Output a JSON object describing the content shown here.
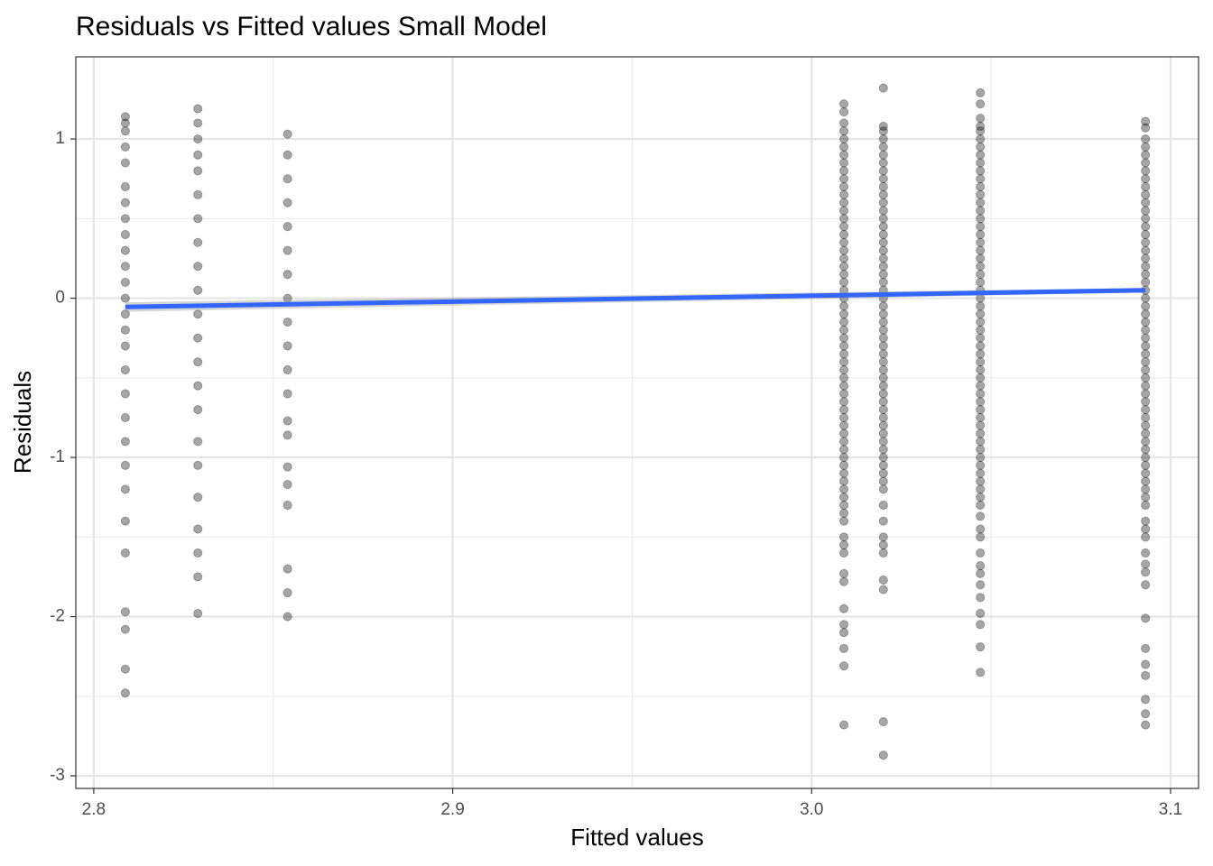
{
  "chart_data": {
    "type": "scatter",
    "title": "Residuals vs Fitted values Small Model",
    "x_label": "Fitted values",
    "y_label": "Residuals",
    "xlim": [
      2.795,
      3.1078
    ],
    "ylim": [
      -3.079,
      1.516
    ],
    "xticks": [
      2.8,
      2.9,
      {
        "value": 3,
        "label": "3.0"
      },
      3.1
    ],
    "yticks": [
      -3,
      -2,
      -1,
      0,
      1
    ],
    "minor_xticks": [
      2.85,
      2.95,
      3.05
    ],
    "minor_yticks": [
      -2.5,
      -1.5,
      -0.5,
      0.5
    ],
    "grid": true,
    "color": "#000000",
    "opacity": 0.35,
    "series": [
      {
        "x": 2.8088,
        "values": [
          1.14,
          1.1,
          1.05,
          0.95,
          0.85,
          0.7,
          0.6,
          0.5,
          0.4,
          0.3,
          0.2,
          0.1,
          0,
          -0.1,
          -0.2,
          -0.3,
          -0.45,
          -0.6,
          -0.75,
          -0.9,
          -1.05,
          -1.2,
          -1.4,
          -1.6,
          -1.97,
          -2.08,
          -2.33,
          -2.48
        ]
      },
      {
        "x": 2.829,
        "values": [
          1.19,
          1.1,
          1,
          0.9,
          0.8,
          0.65,
          0.5,
          0.35,
          0.2,
          0.05,
          -0.1,
          -0.25,
          -0.4,
          -0.55,
          -0.7,
          -0.9,
          -1.05,
          -1.25,
          -1.45,
          -1.6,
          -1.75,
          -1.98
        ]
      },
      {
        "x": 2.854,
        "values": [
          1.03,
          0.9,
          0.75,
          0.6,
          0.45,
          0.3,
          0.15,
          0,
          -0.15,
          -0.3,
          -0.45,
          -0.6,
          -0.77,
          -0.86,
          -1.06,
          -1.17,
          -1.3,
          -1.7,
          -1.85,
          -2
        ]
      },
      {
        "x": 3.009,
        "values": [
          1.22,
          1.17,
          1.1,
          1.05,
          1,
          0.95,
          0.9,
          0.85,
          0.8,
          0.75,
          0.7,
          0.65,
          0.6,
          0.55,
          0.5,
          0.45,
          0.4,
          0.35,
          0.3,
          0.25,
          0.2,
          0.15,
          0.1,
          0.05,
          0,
          -0.05,
          -0.1,
          -0.15,
          -0.2,
          -0.25,
          -0.3,
          -0.35,
          -0.4,
          -0.45,
          -0.5,
          -0.55,
          -0.6,
          -0.65,
          -0.7,
          -0.75,
          -0.8,
          -0.85,
          -0.9,
          -0.95,
          -1,
          -1.05,
          -1.1,
          -1.15,
          -1.2,
          -1.25,
          -1.3,
          -1.35,
          -1.4,
          -1.5,
          -1.55,
          -1.6,
          -1.73,
          -1.78,
          -1.95,
          -2.05,
          -2.1,
          -2.2,
          -2.31,
          -2.68
        ]
      },
      {
        "x": 3.02,
        "values": [
          1.32,
          1.08,
          1.05,
          1,
          0.95,
          0.9,
          0.85,
          0.8,
          0.75,
          0.7,
          0.65,
          0.6,
          0.55,
          0.5,
          0.45,
          0.4,
          0.35,
          0.3,
          0.25,
          0.2,
          0.15,
          0.1,
          0.05,
          0,
          -0.05,
          -0.1,
          -0.15,
          -0.2,
          -0.25,
          -0.3,
          -0.35,
          -0.4,
          -0.45,
          -0.5,
          -0.55,
          -0.6,
          -0.65,
          -0.7,
          -0.75,
          -0.8,
          -0.85,
          -0.9,
          -0.95,
          -1,
          -1.05,
          -1.1,
          -1.15,
          -1.2,
          -1.3,
          -1.4,
          -1.5,
          -1.55,
          -1.6,
          -1.77,
          -1.83,
          -2.66,
          -2.87
        ]
      },
      {
        "x": 3.047,
        "values": [
          1.29,
          1.22,
          1.13,
          1.08,
          1.05,
          1,
          0.95,
          0.9,
          0.85,
          0.8,
          0.75,
          0.7,
          0.65,
          0.6,
          0.55,
          0.5,
          0.45,
          0.4,
          0.35,
          0.3,
          0.25,
          0.2,
          0.15,
          0.1,
          0.05,
          0,
          -0.05,
          -0.1,
          -0.15,
          -0.2,
          -0.25,
          -0.3,
          -0.35,
          -0.4,
          -0.45,
          -0.5,
          -0.55,
          -0.6,
          -0.65,
          -0.7,
          -0.75,
          -0.8,
          -0.85,
          -0.9,
          -0.95,
          -1,
          -1.05,
          -1.1,
          -1.15,
          -1.2,
          -1.25,
          -1.3,
          -1.37,
          -1.45,
          -1.5,
          -1.6,
          -1.68,
          -1.73,
          -1.8,
          -1.88,
          -1.98,
          -2.05,
          -2.19,
          -2.35
        ]
      },
      {
        "x": 3.093,
        "values": [
          1.11,
          1.07,
          1,
          0.95,
          0.9,
          0.85,
          0.8,
          0.75,
          0.7,
          0.65,
          0.6,
          0.55,
          0.5,
          0.45,
          0.4,
          0.35,
          0.3,
          0.25,
          0.2,
          0.15,
          0.1,
          0.05,
          0,
          -0.05,
          -0.1,
          -0.15,
          -0.2,
          -0.25,
          -0.3,
          -0.35,
          -0.4,
          -0.45,
          -0.5,
          -0.55,
          -0.6,
          -0.65,
          -0.7,
          -0.75,
          -0.8,
          -0.85,
          -0.9,
          -0.95,
          -1,
          -1.05,
          -1.1,
          -1.15,
          -1.2,
          -1.25,
          -1.3,
          -1.4,
          -1.45,
          -1.5,
          -1.6,
          -1.67,
          -1.72,
          -1.8,
          -2.01,
          -2.2,
          -2.3,
          -2.37,
          -2.52,
          -2.61,
          -2.68
        ]
      }
    ],
    "trend": {
      "x": [
        2.8088,
        3.093
      ],
      "values": [
        -0.055,
        0.05
      ],
      "ci_lower": [
        -0.085,
        0.035
      ],
      "ci_upper": [
        -0.025,
        0.065
      ],
      "color": "#3366ff",
      "band_color": "#999999"
    }
  }
}
